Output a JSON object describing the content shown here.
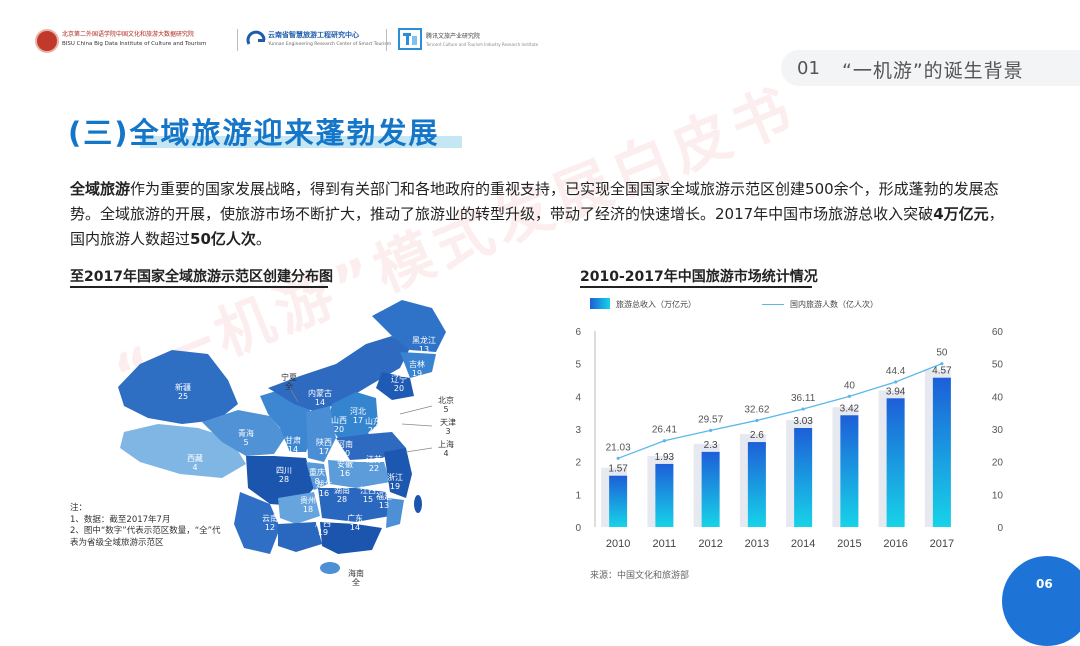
{
  "header": {
    "logo1_line1": "北京第二外国语学院中国文化和旅游大数据研究院",
    "logo1_line2": "BISU China Big Data Institute of Culture and Tourism",
    "logo2_line1": "云南省智慧旅游工程研究中心",
    "logo2_line2": "Yunnan Engineering Research Center of Smart Tourism",
    "logo3_line1": "腾讯文旅产业研究院",
    "logo3_line2": "Tencent Culture and Tourism Industry Research Institute"
  },
  "section": {
    "number": "01",
    "title": "“一机游”的诞生背景"
  },
  "heading": "(三)全域旅游迎来蓬勃发展",
  "paragraph": {
    "p1_bold": "全域旅游",
    "p1_rest": "作为重要的国家发展战略，得到有关部门和各地政府的重视支持，已实现全国国家全域旅游示范区创建500余个，形成蓬勃的发展态势。全域旅游的开展，使旅游市场不断扩大，推动了旅游业的转型升级，带动了经济的快速增长。2017年中国市场旅游总收入突破",
    "bold2": "4万亿元",
    "mid": "，国内旅游人数超过",
    "bold3": "50亿人次",
    "end": "。"
  },
  "map": {
    "title": "至2017年国家全域旅游示范区创建分布图",
    "regions": [
      {
        "name": "黑龙江",
        "value": "13"
      },
      {
        "name": "吉林",
        "value": "19"
      },
      {
        "name": "辽宁",
        "value": "20"
      },
      {
        "name": "新疆",
        "value": "25"
      },
      {
        "name": "内蒙古",
        "value": "14"
      },
      {
        "name": "河北",
        "value": "17"
      },
      {
        "name": "山西",
        "value": "20"
      },
      {
        "name": "宁夏",
        "value": "全"
      },
      {
        "name": "北京",
        "value": "5"
      },
      {
        "name": "天津",
        "value": "3"
      },
      {
        "name": "山东",
        "value": "21"
      },
      {
        "name": "上海",
        "value": "4"
      },
      {
        "name": "青海",
        "value": "5"
      },
      {
        "name": "甘肃",
        "value": "14"
      },
      {
        "name": "陕西",
        "value": "17"
      },
      {
        "name": "河南",
        "value": "20"
      },
      {
        "name": "江苏",
        "value": "22"
      },
      {
        "name": "安徽",
        "value": "16"
      },
      {
        "name": "西藏",
        "value": "4"
      },
      {
        "name": "四川",
        "value": "28"
      },
      {
        "name": "重庆",
        "value": "8"
      },
      {
        "name": "湖北",
        "value": "16"
      },
      {
        "name": "浙江",
        "value": "19"
      },
      {
        "name": "贵州",
        "value": "18"
      },
      {
        "name": "湖南",
        "value": "28"
      },
      {
        "name": "江西",
        "value": "15"
      },
      {
        "name": "福建",
        "value": "13"
      },
      {
        "name": "云南",
        "value": "12"
      },
      {
        "name": "广西",
        "value": "19"
      },
      {
        "name": "广东",
        "value": "14"
      },
      {
        "name": "海南",
        "value": "全"
      }
    ],
    "note_line1": "注：",
    "note_line2": "1、数据：截至2017年7月",
    "note_line3": "2、图中“数字”代表示范区数量，“全”代",
    "note_line4": "表为省级全域旅游示范区"
  },
  "chart_data": {
    "type": "bar",
    "title": "2010-2017年中国旅游市场统计情况",
    "categories": [
      "2010",
      "2011",
      "2012",
      "2013",
      "2014",
      "2015",
      "2016",
      "2017"
    ],
    "series": [
      {
        "name": "旅游总收入（万亿元）",
        "type": "bar",
        "axis": "left",
        "values": [
          1.57,
          1.93,
          2.3,
          2.6,
          3.03,
          3.42,
          3.94,
          4.57
        ]
      },
      {
        "name": "国内旅游人数（亿人次）",
        "type": "line",
        "axis": "right",
        "values": [
          21.03,
          26.41,
          29.57,
          32.62,
          36.11,
          40,
          44.4,
          50
        ]
      }
    ],
    "left_ticks": [
      "0",
      "1",
      "2",
      "3",
      "4",
      "5",
      "6"
    ],
    "right_ticks": [
      "0",
      "10",
      "20",
      "30",
      "40",
      "50",
      "60"
    ],
    "ylim_left": [
      0,
      6
    ],
    "ylim_right": [
      0,
      60
    ],
    "source": "来源：中国文化和旅游部",
    "colors": {
      "bar_top": "#1d5fd8",
      "bar_bottom": "#17d3e8",
      "line": "#5cb8ea",
      "bar_shadow": "#e6e9ef"
    }
  },
  "watermark": "“一机游”模式发展白皮书",
  "page_number": "06"
}
